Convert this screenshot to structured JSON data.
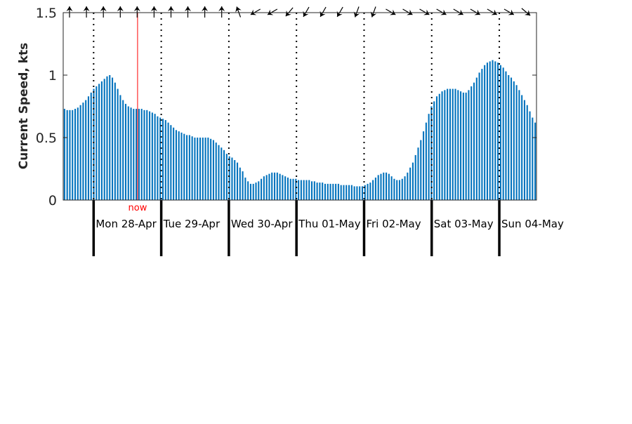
{
  "chart_data": {
    "type": "bar",
    "title": "",
    "xlabel": "",
    "ylabel": "Current Speed, kts",
    "ylim": [
      0,
      1.5
    ],
    "yticks": [
      0,
      0.5,
      1,
      1.5
    ],
    "ytick_labels": [
      "0",
      "0.5",
      "1",
      "1.5"
    ],
    "xlim_hours": [
      -10.8,
      157.2
    ],
    "day_labels": [
      "Mon 28-Apr",
      "Tue 29-Apr",
      "Wed 30-Apr",
      "Thu 01-May",
      "Fri 02-May",
      "Sat 03-May",
      "Sun 04-May"
    ],
    "now_label": "now",
    "now_hour": 15.6,
    "grid": false,
    "bar_color": "#0072BD",
    "now_color": "#FF0000",
    "series": [
      {
        "values": [
          0.73,
          0.72,
          0.72,
          0.72,
          0.73,
          0.74,
          0.76,
          0.78,
          0.8,
          0.83,
          0.86,
          0.89,
          0.91,
          0.93,
          0.95,
          0.97,
          0.99,
          1.0,
          0.98,
          0.94,
          0.89,
          0.84,
          0.8,
          0.77,
          0.75,
          0.74,
          0.73,
          0.73,
          0.73,
          0.73,
          0.72,
          0.72,
          0.71,
          0.7,
          0.69,
          0.67,
          0.66,
          0.65,
          0.64,
          0.62,
          0.6,
          0.58,
          0.56,
          0.55,
          0.54,
          0.53,
          0.52,
          0.52,
          0.51,
          0.5,
          0.5,
          0.5,
          0.5,
          0.5,
          0.5,
          0.49,
          0.48,
          0.46,
          0.44,
          0.42,
          0.4,
          0.37,
          0.35,
          0.34,
          0.32,
          0.3,
          0.26,
          0.23,
          0.18,
          0.15,
          0.13,
          0.13,
          0.14,
          0.15,
          0.17,
          0.19,
          0.2,
          0.21,
          0.22,
          0.22,
          0.22,
          0.21,
          0.2,
          0.19,
          0.18,
          0.17,
          0.17,
          0.17,
          0.16,
          0.16,
          0.16,
          0.16,
          0.16,
          0.15,
          0.15,
          0.14,
          0.14,
          0.14,
          0.13,
          0.13,
          0.13,
          0.13,
          0.13,
          0.13,
          0.12,
          0.12,
          0.12,
          0.12,
          0.12,
          0.11,
          0.11,
          0.11,
          0.11,
          0.12,
          0.13,
          0.14,
          0.16,
          0.18,
          0.2,
          0.21,
          0.22,
          0.22,
          0.21,
          0.19,
          0.17,
          0.16,
          0.16,
          0.17,
          0.19,
          0.22,
          0.26,
          0.3,
          0.36,
          0.42,
          0.48,
          0.55,
          0.62,
          0.69,
          0.75,
          0.79,
          0.83,
          0.85,
          0.87,
          0.88,
          0.89,
          0.89,
          0.89,
          0.89,
          0.88,
          0.87,
          0.86,
          0.86,
          0.88,
          0.91,
          0.94,
          0.98,
          1.02,
          1.05,
          1.08,
          1.1,
          1.11,
          1.12,
          1.11,
          1.1,
          1.08,
          1.06,
          1.03,
          1.0,
          0.98,
          0.95,
          0.92,
          0.88,
          0.84,
          0.8,
          0.76,
          0.71,
          0.66,
          0.62
        ]
      }
    ],
    "direction_arrows": [
      {
        "label": "",
        "bearing": 180
      },
      {
        "label": "",
        "bearing": 180
      },
      {
        "label": "",
        "bearing": 180
      },
      {
        "label": "",
        "bearing": 180
      },
      {
        "label": "",
        "bearing": 180
      },
      {
        "label": "",
        "bearing": 180
      },
      {
        "label": "",
        "bearing": 180
      },
      {
        "label": "",
        "bearing": 180
      },
      {
        "label": "",
        "bearing": 180
      },
      {
        "label": "",
        "bearing": 180
      },
      {
        "label": "",
        "bearing": 160
      },
      {
        "label": "",
        "bearing": 60
      },
      {
        "label": "",
        "bearing": 60
      },
      {
        "label": "",
        "bearing": 40
      },
      {
        "label": "",
        "bearing": 30
      },
      {
        "label": "",
        "bearing": 30
      },
      {
        "label": "",
        "bearing": 30
      },
      {
        "label": "",
        "bearing": 20
      },
      {
        "label": "",
        "bearing": 20
      },
      {
        "label": "",
        "bearing": 300
      },
      {
        "label": "",
        "bearing": 300
      },
      {
        "label": "",
        "bearing": 300
      },
      {
        "label": "",
        "bearing": 300
      },
      {
        "label": "",
        "bearing": 300
      },
      {
        "label": "",
        "bearing": 300
      },
      {
        "label": "",
        "bearing": 300
      },
      {
        "label": "",
        "bearing": 300
      },
      {
        "label": "",
        "bearing": 310
      }
    ]
  }
}
